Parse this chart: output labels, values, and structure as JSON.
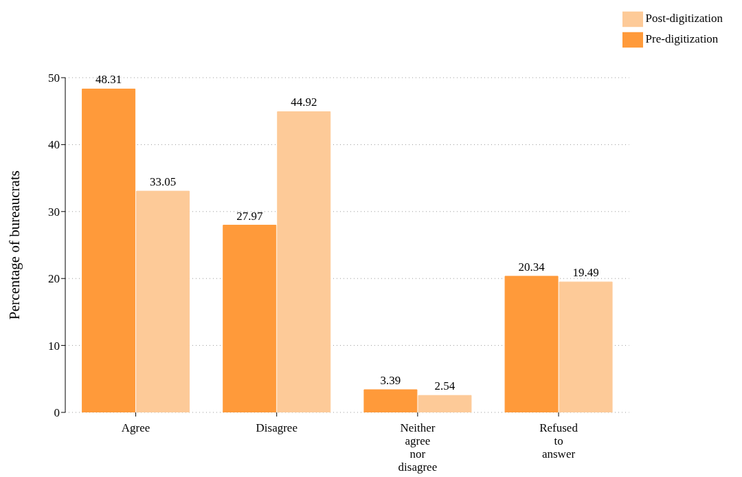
{
  "chart_data": {
    "type": "bar",
    "ylabel": "Percentage of bureaucrats",
    "categories": [
      "Agree",
      "Disagree",
      "Neither agree nor disagree",
      "Refused to answer"
    ],
    "series": [
      {
        "name": "Pre-digitization",
        "color": "#ff9a3a",
        "values": [
          48.31,
          27.97,
          3.39,
          20.34
        ]
      },
      {
        "name": "Post-digitization",
        "color": "#fdca98",
        "values": [
          33.05,
          44.92,
          2.54,
          19.49
        ]
      }
    ],
    "ylim": [
      0,
      50
    ],
    "yticks": [
      0,
      10,
      20,
      30,
      40,
      50
    ],
    "grid": "y",
    "legend": "top right",
    "data_labels": true
  }
}
